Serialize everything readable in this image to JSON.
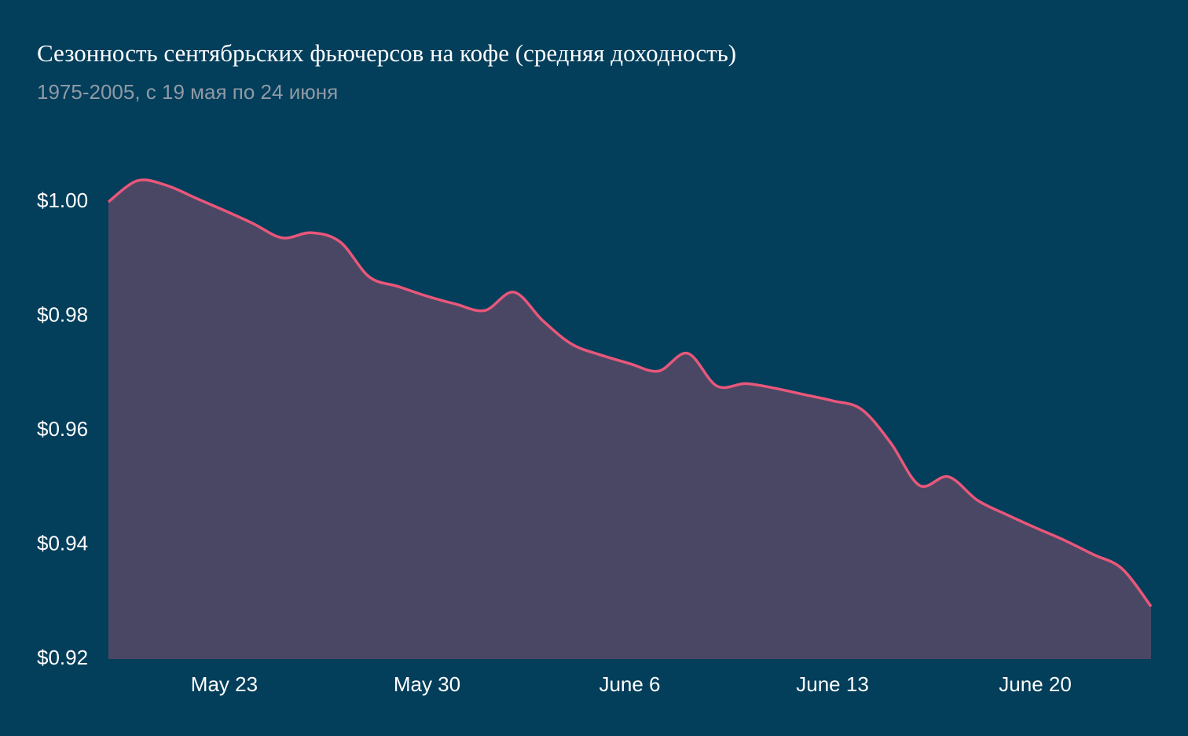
{
  "chart_data": {
    "type": "area",
    "title": "Сезонность сентябрьских фьючерсов на кофе (средняя доходность)",
    "subtitle": "1975-2005, с 19 мая по 24 июня",
    "x": [
      "May 19",
      "May 20",
      "May 21",
      "May 22",
      "May 23",
      "May 24",
      "May 25",
      "May 26",
      "May 27",
      "May 28",
      "May 29",
      "May 30",
      "May 31",
      "June 1",
      "June 2",
      "June 3",
      "June 4",
      "June 5",
      "June 6",
      "June 7",
      "June 8",
      "June 9",
      "June 10",
      "June 11",
      "June 12",
      "June 13",
      "June 14",
      "June 15",
      "June 16",
      "June 17",
      "June 18",
      "June 19",
      "June 20",
      "June 21",
      "June 22",
      "June 23",
      "June 24"
    ],
    "series": [
      {
        "name": "Средняя доходность",
        "color": "#e8577a",
        "fill": "#4a4764",
        "values": [
          1.0,
          1.0037,
          1.0029,
          1.0007,
          0.9985,
          0.9962,
          0.9937,
          0.9946,
          0.993,
          0.9869,
          0.9852,
          0.9835,
          0.9821,
          0.981,
          0.9842,
          0.9792,
          0.9751,
          0.9732,
          0.9717,
          0.9704,
          0.9735,
          0.9678,
          0.9682,
          0.9674,
          0.9663,
          0.9652,
          0.9637,
          0.9579,
          0.9504,
          0.9519,
          0.9478,
          0.9453,
          0.943,
          0.9408,
          0.9383,
          0.9358,
          0.9292
        ]
      }
    ],
    "xticks": [
      "May 23",
      "May 30",
      "June 6",
      "June 13",
      "June 20"
    ],
    "ylim": [
      0.92,
      1.01
    ],
    "yticks": [
      {
        "value": 0.92,
        "label": "$0.92"
      },
      {
        "value": 0.94,
        "label": "$0.94"
      },
      {
        "value": 0.96,
        "label": "$0.96"
      },
      {
        "value": 0.98,
        "label": "$0.98"
      },
      {
        "value": 1.0,
        "label": "$1.00"
      }
    ],
    "grid": false
  }
}
